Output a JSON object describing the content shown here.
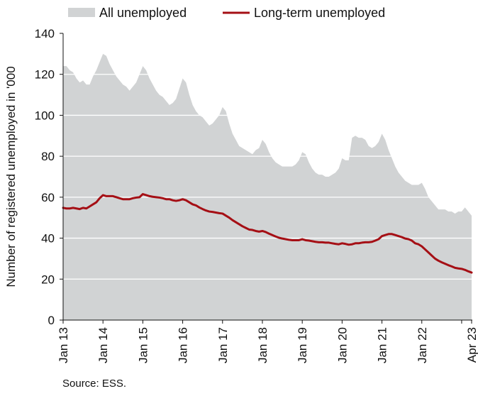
{
  "chart_data": {
    "type": "area",
    "ylabel": "Number of registered unemployed in '000",
    "ylim": [
      0,
      140
    ],
    "yticks": [
      0,
      20,
      40,
      60,
      80,
      100,
      120,
      140
    ],
    "grid": "horizontal",
    "legend_position": "top",
    "xtick_labels": [
      "Jan 13",
      "Jan 14",
      "Jan 15",
      "Jan 16",
      "Jan 17",
      "Jan 18",
      "Jan 19",
      "Jan 20",
      "Jan 21",
      "Jan 22",
      "Apr 23"
    ],
    "xtick_months": [
      0,
      12,
      24,
      36,
      48,
      60,
      72,
      84,
      96,
      108,
      123
    ],
    "colors": {
      "all": "#d1d3d4",
      "longterm": "#a50f15",
      "grid": "#ffffff"
    },
    "series": [
      {
        "name": "All unemployed",
        "kind": "area",
        "points": [
          [
            0,
            124
          ],
          [
            1,
            124
          ],
          [
            2,
            122
          ],
          [
            3,
            121
          ],
          [
            4,
            118
          ],
          [
            5,
            116
          ],
          [
            6,
            117
          ],
          [
            7,
            115
          ],
          [
            8,
            115
          ],
          [
            9,
            119
          ],
          [
            10,
            122
          ],
          [
            11,
            126
          ],
          [
            12,
            130
          ],
          [
            13,
            129
          ],
          [
            14,
            125
          ],
          [
            15,
            122
          ],
          [
            16,
            119
          ],
          [
            17,
            117
          ],
          [
            18,
            115
          ],
          [
            19,
            114
          ],
          [
            20,
            112
          ],
          [
            21,
            114
          ],
          [
            22,
            116
          ],
          [
            23,
            120
          ],
          [
            24,
            124
          ],
          [
            25,
            122
          ],
          [
            26,
            118
          ],
          [
            27,
            115
          ],
          [
            28,
            112
          ],
          [
            29,
            110
          ],
          [
            30,
            109
          ],
          [
            31,
            107
          ],
          [
            32,
            105
          ],
          [
            33,
            106
          ],
          [
            34,
            108
          ],
          [
            35,
            113
          ],
          [
            36,
            118
          ],
          [
            37,
            116
          ],
          [
            38,
            110
          ],
          [
            39,
            105
          ],
          [
            40,
            102
          ],
          [
            41,
            100
          ],
          [
            42,
            99
          ],
          [
            43,
            97
          ],
          [
            44,
            95
          ],
          [
            45,
            96
          ],
          [
            46,
            98
          ],
          [
            47,
            100
          ],
          [
            48,
            104
          ],
          [
            49,
            102
          ],
          [
            50,
            96
          ],
          [
            51,
            91
          ],
          [
            52,
            88
          ],
          [
            53,
            85
          ],
          [
            54,
            84
          ],
          [
            55,
            83
          ],
          [
            56,
            82
          ],
          [
            57,
            81
          ],
          [
            58,
            83
          ],
          [
            59,
            84
          ],
          [
            60,
            88
          ],
          [
            61,
            86
          ],
          [
            62,
            82
          ],
          [
            63,
            79
          ],
          [
            64,
            77
          ],
          [
            65,
            76
          ],
          [
            66,
            75
          ],
          [
            67,
            75
          ],
          [
            68,
            75
          ],
          [
            69,
            75
          ],
          [
            70,
            76
          ],
          [
            71,
            78
          ],
          [
            72,
            82
          ],
          [
            73,
            81
          ],
          [
            74,
            77
          ],
          [
            75,
            74
          ],
          [
            76,
            72
          ],
          [
            77,
            71
          ],
          [
            78,
            71
          ],
          [
            79,
            70
          ],
          [
            80,
            70
          ],
          [
            81,
            71
          ],
          [
            82,
            72
          ],
          [
            83,
            74
          ],
          [
            84,
            79
          ],
          [
            85,
            78
          ],
          [
            86,
            78
          ],
          [
            87,
            89
          ],
          [
            88,
            90
          ],
          [
            89,
            89
          ],
          [
            90,
            89
          ],
          [
            91,
            88
          ],
          [
            92,
            85
          ],
          [
            93,
            84
          ],
          [
            94,
            85
          ],
          [
            95,
            87
          ],
          [
            96,
            91
          ],
          [
            97,
            88
          ],
          [
            98,
            83
          ],
          [
            99,
            79
          ],
          [
            100,
            75
          ],
          [
            101,
            72
          ],
          [
            102,
            70
          ],
          [
            103,
            68
          ],
          [
            104,
            67
          ],
          [
            105,
            66
          ],
          [
            106,
            66
          ],
          [
            107,
            66
          ],
          [
            108,
            67
          ],
          [
            109,
            64
          ],
          [
            110,
            60
          ],
          [
            111,
            58
          ],
          [
            112,
            56
          ],
          [
            113,
            54
          ],
          [
            114,
            54
          ],
          [
            115,
            54
          ],
          [
            116,
            53
          ],
          [
            117,
            53
          ],
          [
            118,
            52
          ],
          [
            119,
            53
          ],
          [
            120,
            53
          ],
          [
            121,
            55
          ],
          [
            122,
            53
          ],
          [
            123,
            51
          ]
        ]
      },
      {
        "name": "Long-term unemployed",
        "kind": "line",
        "points": [
          [
            0,
            54.8
          ],
          [
            1,
            54.5
          ],
          [
            2,
            54.5
          ],
          [
            3,
            54.8
          ],
          [
            4,
            54.5
          ],
          [
            5,
            54.2
          ],
          [
            6,
            54.8
          ],
          [
            7,
            54.5
          ],
          [
            8,
            55.5
          ],
          [
            9,
            56.5
          ],
          [
            10,
            57.5
          ],
          [
            11,
            59.5
          ],
          [
            12,
            61
          ],
          [
            13,
            60.5
          ],
          [
            14,
            60.5
          ],
          [
            15,
            60.5
          ],
          [
            16,
            60
          ],
          [
            17,
            59.5
          ],
          [
            18,
            59
          ],
          [
            19,
            59
          ],
          [
            20,
            59
          ],
          [
            21,
            59.5
          ],
          [
            22,
            59.8
          ],
          [
            23,
            60
          ],
          [
            24,
            61.5
          ],
          [
            25,
            61
          ],
          [
            26,
            60.5
          ],
          [
            27,
            60.2
          ],
          [
            28,
            60
          ],
          [
            29,
            59.8
          ],
          [
            30,
            59.5
          ],
          [
            31,
            59
          ],
          [
            32,
            59
          ],
          [
            33,
            58.5
          ],
          [
            34,
            58.2
          ],
          [
            35,
            58.5
          ],
          [
            36,
            59
          ],
          [
            37,
            58.5
          ],
          [
            38,
            57.5
          ],
          [
            39,
            56.5
          ],
          [
            40,
            56
          ],
          [
            41,
            55
          ],
          [
            42,
            54.2
          ],
          [
            43,
            53.5
          ],
          [
            44,
            53
          ],
          [
            45,
            52.8
          ],
          [
            46,
            52.5
          ],
          [
            47,
            52.2
          ],
          [
            48,
            52
          ],
          [
            49,
            51
          ],
          [
            50,
            50
          ],
          [
            51,
            48.8
          ],
          [
            52,
            47.8
          ],
          [
            53,
            46.8
          ],
          [
            54,
            45.8
          ],
          [
            55,
            45
          ],
          [
            56,
            44.2
          ],
          [
            57,
            44
          ],
          [
            58,
            43.5
          ],
          [
            59,
            43.2
          ],
          [
            60,
            43.5
          ],
          [
            61,
            43
          ],
          [
            62,
            42.2
          ],
          [
            63,
            41.5
          ],
          [
            64,
            40.8
          ],
          [
            65,
            40.2
          ],
          [
            66,
            39.8
          ],
          [
            67,
            39.5
          ],
          [
            68,
            39.2
          ],
          [
            69,
            39
          ],
          [
            70,
            39
          ],
          [
            71,
            39
          ],
          [
            72,
            39.5
          ],
          [
            73,
            39
          ],
          [
            74,
            38.8
          ],
          [
            75,
            38.5
          ],
          [
            76,
            38.2
          ],
          [
            77,
            38
          ],
          [
            78,
            38
          ],
          [
            79,
            37.8
          ],
          [
            80,
            37.8
          ],
          [
            81,
            37.5
          ],
          [
            82,
            37.2
          ],
          [
            83,
            37
          ],
          [
            84,
            37.5
          ],
          [
            85,
            37.2
          ],
          [
            86,
            36.8
          ],
          [
            87,
            37
          ],
          [
            88,
            37.5
          ],
          [
            89,
            37.5
          ],
          [
            90,
            37.8
          ],
          [
            91,
            38
          ],
          [
            92,
            38
          ],
          [
            93,
            38.2
          ],
          [
            94,
            38.8
          ],
          [
            95,
            39.5
          ],
          [
            96,
            41
          ],
          [
            97,
            41.5
          ],
          [
            98,
            42
          ],
          [
            99,
            42
          ],
          [
            100,
            41.5
          ],
          [
            101,
            41
          ],
          [
            102,
            40.5
          ],
          [
            103,
            39.8
          ],
          [
            104,
            39.5
          ],
          [
            105,
            38.8
          ],
          [
            106,
            37.5
          ],
          [
            107,
            37
          ],
          [
            108,
            36
          ],
          [
            109,
            34.5
          ],
          [
            110,
            33
          ],
          [
            111,
            31.5
          ],
          [
            112,
            30
          ],
          [
            113,
            29
          ],
          [
            114,
            28.2
          ],
          [
            115,
            27.5
          ],
          [
            116,
            26.8
          ],
          [
            117,
            26.2
          ],
          [
            118,
            25.5
          ],
          [
            119,
            25.2
          ],
          [
            120,
            25
          ],
          [
            121,
            24.5
          ],
          [
            122,
            23.8
          ],
          [
            123,
            23.2
          ]
        ]
      }
    ]
  },
  "source": "Source: ESS."
}
